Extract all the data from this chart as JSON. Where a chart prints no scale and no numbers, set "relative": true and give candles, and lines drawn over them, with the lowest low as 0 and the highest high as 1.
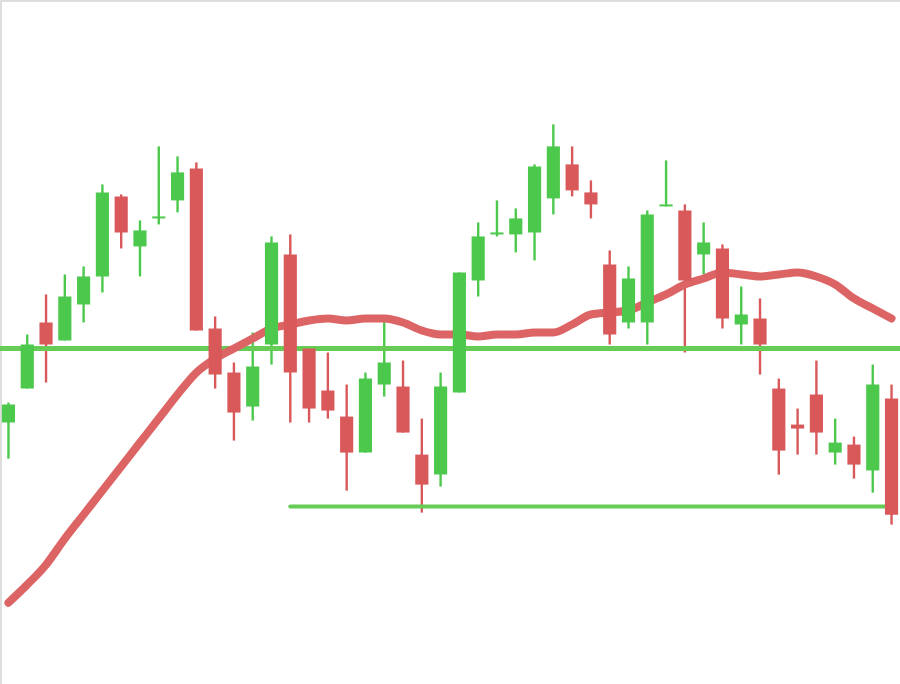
{
  "chart_data": {
    "type": "candlestick",
    "relative": true,
    "categories": [
      null,
      null,
      null,
      null,
      null,
      null,
      null,
      null,
      null,
      null,
      null,
      null,
      null,
      null,
      null,
      null,
      null,
      null,
      null,
      null,
      null,
      null,
      null,
      null,
      null,
      null,
      null,
      null,
      null,
      null,
      null,
      null,
      null,
      null,
      null,
      null,
      null,
      null,
      null,
      null,
      null,
      null,
      null,
      null,
      null,
      null,
      null,
      null
    ],
    "ohlc": [
      [
        0.255,
        0.305,
        0.165,
        0.3
      ],
      [
        0.34,
        0.475,
        0.34,
        0.45
      ],
      [
        0.505,
        0.575,
        0.355,
        0.45
      ],
      [
        0.46,
        0.625,
        0.46,
        0.57
      ],
      [
        0.55,
        0.645,
        0.505,
        0.62
      ],
      [
        0.62,
        0.85,
        0.58,
        0.83
      ],
      [
        0.82,
        0.825,
        0.69,
        0.73
      ],
      [
        0.695,
        0.76,
        0.62,
        0.735
      ],
      [
        0.765,
        0.945,
        0.75,
        0.77
      ],
      [
        0.81,
        0.92,
        0.78,
        0.88
      ],
      [
        0.89,
        0.905,
        0.485,
        0.485
      ],
      [
        0.49,
        0.52,
        0.34,
        0.375
      ],
      [
        0.38,
        0.405,
        0.21,
        0.28
      ],
      [
        0.295,
        0.48,
        0.26,
        0.395
      ],
      [
        0.45,
        0.72,
        0.4,
        0.705
      ],
      [
        0.675,
        0.725,
        0.255,
        0.38
      ],
      [
        0.44,
        0.445,
        0.255,
        0.29
      ],
      [
        0.335,
        0.43,
        0.265,
        0.285
      ],
      [
        0.27,
        0.35,
        0.085,
        0.18
      ],
      [
        0.18,
        0.38,
        0.18,
        0.365
      ],
      [
        0.35,
        0.51,
        0.32,
        0.405
      ],
      [
        0.345,
        0.41,
        0.23,
        0.23
      ],
      [
        0.175,
        0.265,
        0.03,
        0.1
      ],
      [
        0.125,
        0.38,
        0.095,
        0.345
      ],
      [
        0.33,
        0.63,
        0.33,
        0.63
      ],
      [
        0.61,
        0.755,
        0.57,
        0.72
      ],
      [
        0.725,
        0.81,
        0.72,
        0.73
      ],
      [
        0.725,
        0.79,
        0.68,
        0.765
      ],
      [
        0.73,
        0.9,
        0.66,
        0.895
      ],
      [
        0.815,
        1,
        0.775,
        0.945
      ],
      [
        0.9,
        0.945,
        0.82,
        0.835
      ],
      [
        0.83,
        0.86,
        0.765,
        0.8
      ],
      [
        0.65,
        0.685,
        0.45,
        0.475
      ],
      [
        0.505,
        0.645,
        0.49,
        0.615
      ],
      [
        0.505,
        0.785,
        0.45,
        0.775
      ],
      [
        0.795,
        0.91,
        0.795,
        0.8
      ],
      [
        0.785,
        0.8,
        0.43,
        0.61
      ],
      [
        0.675,
        0.755,
        0.625,
        0.705
      ],
      [
        0.69,
        0.7,
        0.49,
        0.515
      ],
      [
        0.5,
        0.595,
        0.45,
        0.525
      ],
      [
        0.515,
        0.565,
        0.375,
        0.45
      ],
      [
        0.34,
        0.365,
        0.125,
        0.185
      ],
      [
        0.25,
        0.29,
        0.175,
        0.24
      ],
      [
        0.325,
        0.41,
        0.175,
        0.23
      ],
      [
        0.18,
        0.265,
        0.15,
        0.205
      ],
      [
        0.2,
        0.22,
        0.115,
        0.15
      ],
      [
        0.135,
        0.4,
        0.08,
        0.35
      ],
      [
        0.315,
        0.35,
        0,
        0.025
      ]
    ],
    "colors": [
      "#4cc94c",
      "#4cc94c",
      "#d9585a",
      "#4cc94c",
      "#4cc94c",
      "#4cc94c",
      "#d9585a",
      "#4cc94c",
      "#4cc94c",
      "#4cc94c",
      "#d9585a",
      "#d9585a",
      "#d9585a",
      "#4cc94c",
      "#4cc94c",
      "#d9585a",
      "#d9585a",
      "#d9585a",
      "#d9585a",
      "#4cc94c",
      "#4cc94c",
      "#d9585a",
      "#d9585a",
      "#4cc94c",
      "#4cc94c",
      "#4cc94c",
      "#4cc94c",
      "#4cc94c",
      "#4cc94c",
      "#4cc94c",
      "#d9585a",
      "#d9585a",
      "#d9585a",
      "#4cc94c",
      "#4cc94c",
      "#4cc94c",
      "#d9585a",
      "#4cc94c",
      "#d9585a",
      "#4cc94c",
      "#d9585a",
      "#d9585a",
      "#d9585a",
      "#d9585a",
      "#4cc94c",
      "#d9585a",
      "#4cc94c",
      "#d9585a"
    ],
    "series": [
      {
        "type": "line",
        "color": "#dc6464",
        "values": [
          -0.195,
          -0.15,
          -0.1,
          -0.035,
          0.025,
          0.085,
          0.145,
          0.205,
          0.265,
          0.325,
          0.38,
          0.415,
          0.44,
          0.465,
          0.49,
          0.5,
          0.51,
          0.515,
          0.51,
          0.515,
          0.515,
          0.505,
          0.485,
          0.475,
          0.475,
          0.47,
          0.475,
          0.475,
          0.48,
          0.48,
          0.5,
          0.525,
          0.53,
          0.535,
          0.555,
          0.575,
          0.6,
          0.615,
          0.63,
          0.625,
          0.62,
          0.625,
          0.63,
          0.62,
          0.6,
          0.565,
          0.54,
          0.515
        ]
      },
      {
        "type": "line",
        "color": "#66cc55",
        "values": [
          null,
          null,
          null,
          null,
          null,
          null,
          null,
          null,
          null,
          null,
          null,
          null,
          null,
          null,
          null,
          0.045,
          0.045,
          0.045,
          0.045,
          0.045,
          0.045,
          0.045,
          0.045,
          0.045,
          0.045,
          0.045,
          0.045,
          0.045,
          0.045,
          0.045,
          0.045,
          0.045,
          0.045,
          0.045,
          0.045,
          0.045,
          0.045,
          0.045,
          0.045,
          0.045,
          0.045,
          0.045,
          0.045,
          0.045,
          0.045,
          0.045,
          0.045,
          0.045
        ]
      }
    ],
    "ref_lines": [
      {
        "axis": "y",
        "value": 0.44,
        "color": "#66cc55"
      }
    ]
  }
}
